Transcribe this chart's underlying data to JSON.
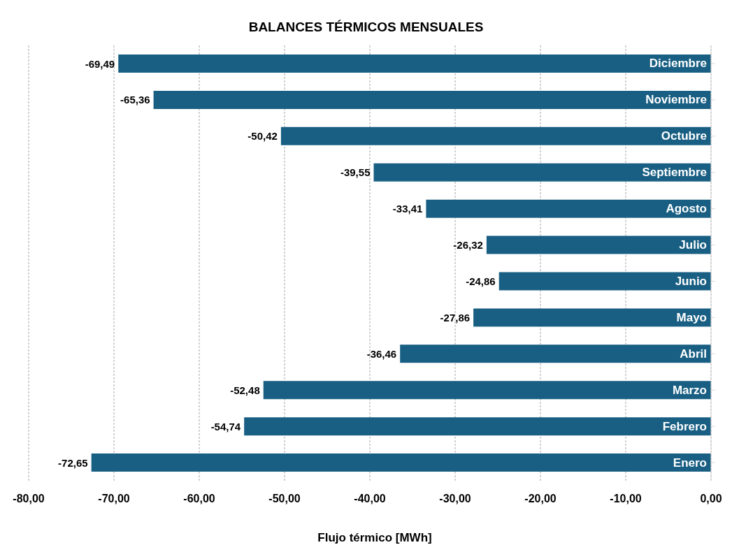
{
  "chart_data": {
    "type": "bar",
    "orientation": "horizontal",
    "title": "BALANCES TÉRMICOS MENSUALES",
    "xlabel": "Flujo térmico [MWh]",
    "categories": [
      "Diciembre",
      "Noviembre",
      "Octubre",
      "Septiembre",
      "Agosto",
      "Julio",
      "Junio",
      "Mayo",
      "Abril",
      "Marzo",
      "Febrero",
      "Enero"
    ],
    "values": [
      -69.49,
      -65.36,
      -50.42,
      -39.55,
      -33.41,
      -26.32,
      -24.86,
      -27.86,
      -36.46,
      -52.48,
      -54.74,
      -72.65
    ],
    "value_labels": [
      "-69,49",
      "-65,36",
      "-50,42",
      "-39,55",
      "-33,41",
      "-26,32",
      "-24,86",
      "-27,86",
      "-36,46",
      "-52,48",
      "-54,74",
      "-72,65"
    ],
    "color": "#195f83",
    "xlim": [
      -80,
      0
    ],
    "xticks": [
      {
        "value": -80,
        "label": "-80,00"
      },
      {
        "value": -70,
        "label": "-70,00"
      },
      {
        "value": -60,
        "label": "-60,00"
      },
      {
        "value": -50,
        "label": "-50,00"
      },
      {
        "value": -40,
        "label": "-40,00"
      },
      {
        "value": -30,
        "label": "-30,00"
      },
      {
        "value": -20,
        "label": "-20,00"
      },
      {
        "value": -10,
        "label": "-10,00"
      },
      {
        "value": 0,
        "label": "0,00"
      }
    ],
    "grid": "x"
  }
}
